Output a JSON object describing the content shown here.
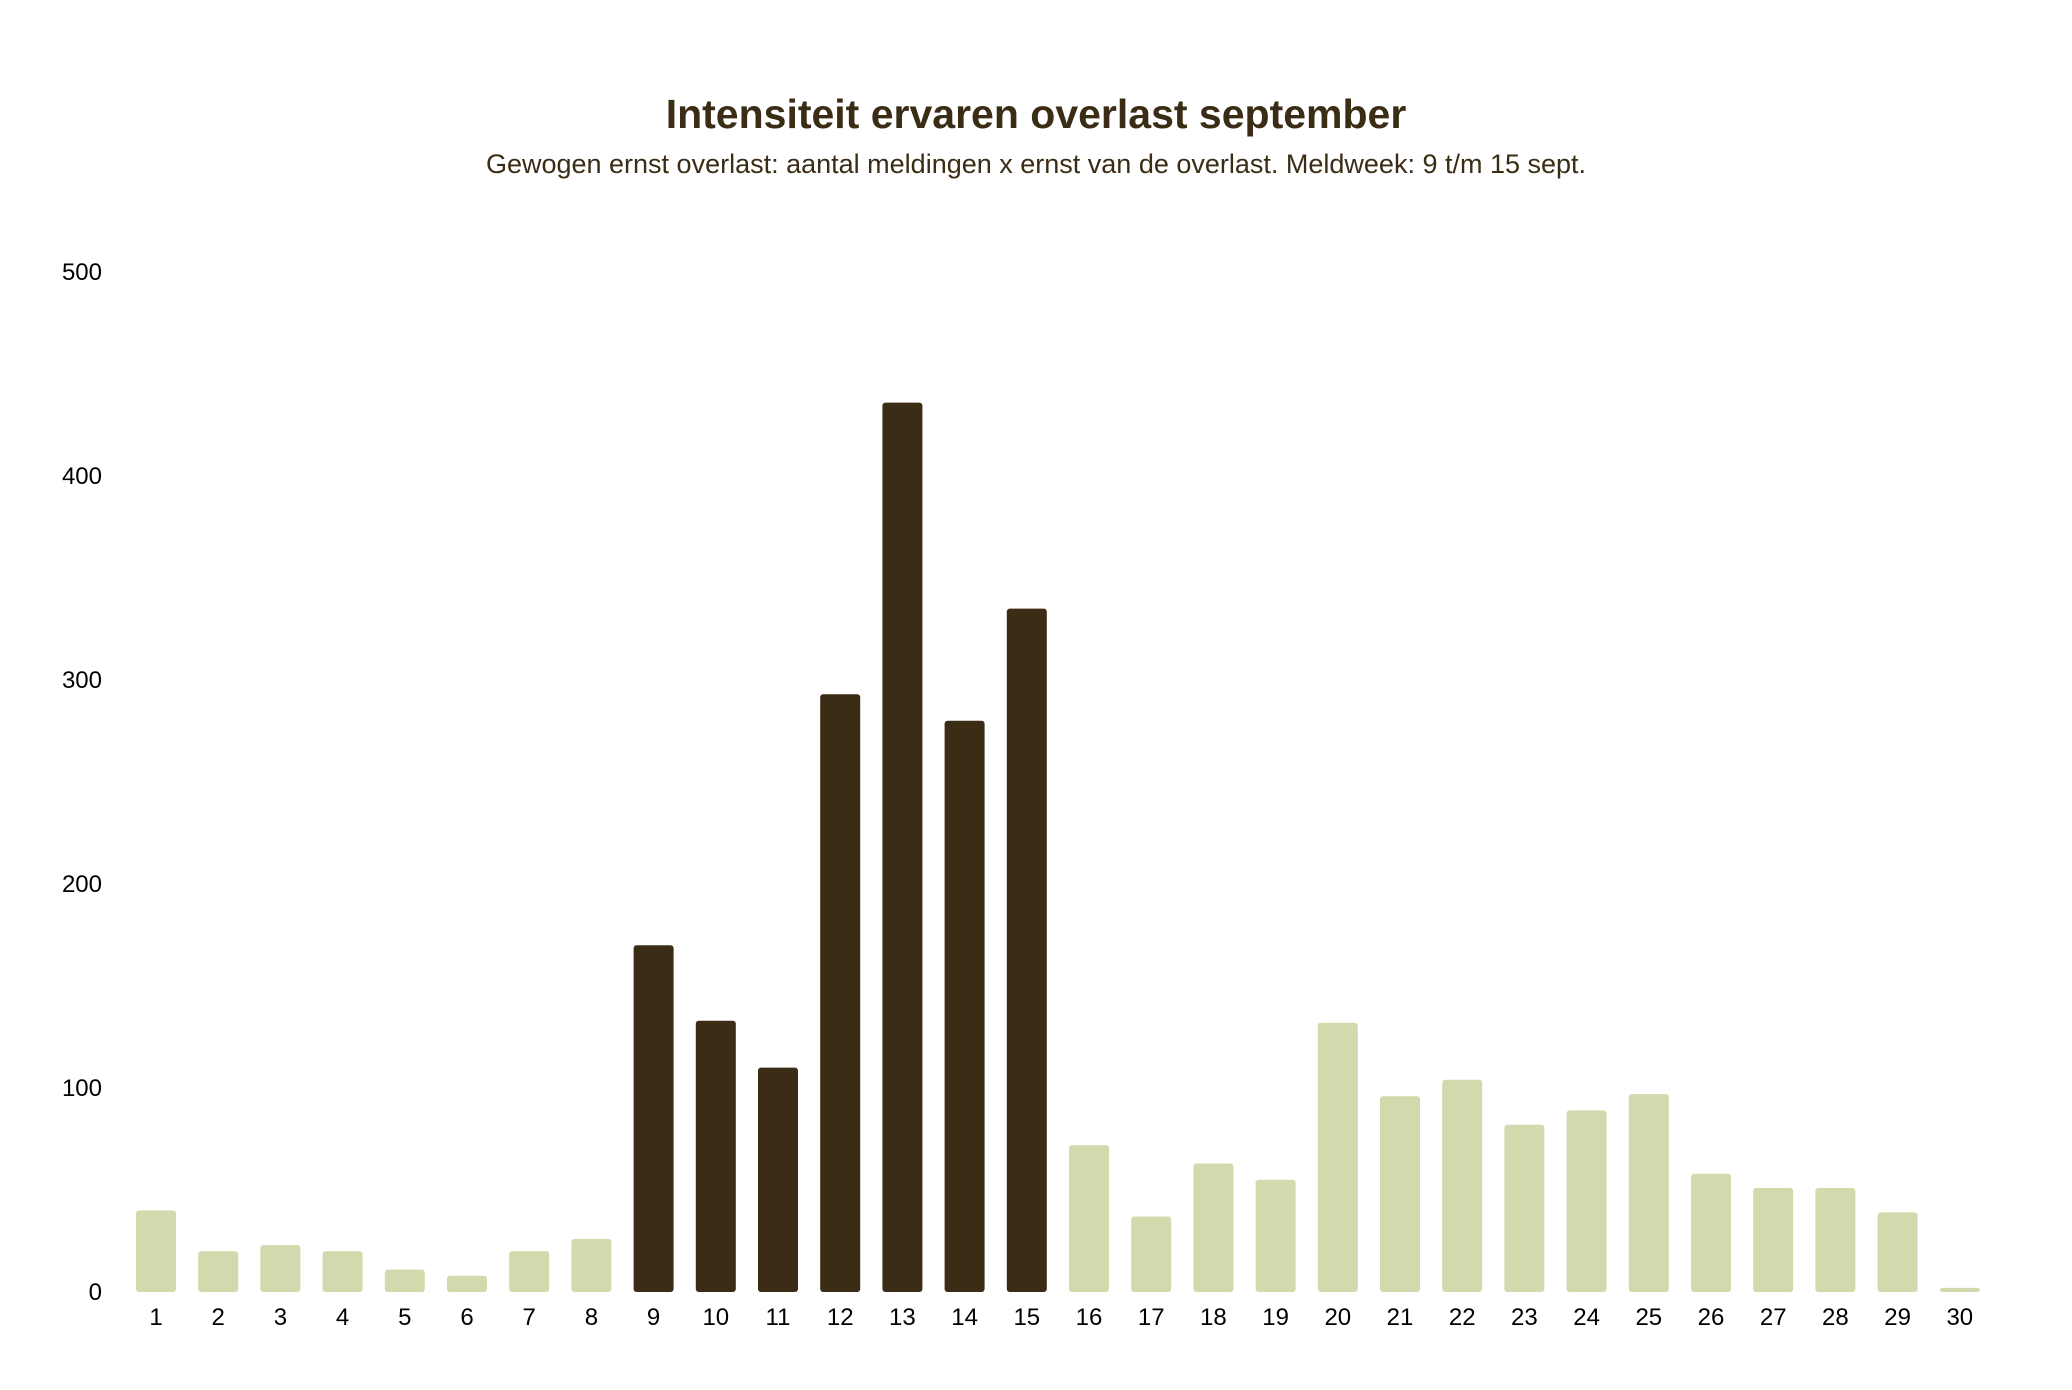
{
  "chart_data": {
    "type": "bar",
    "title": "Intensiteit ervaren overlast september",
    "subtitle": "Gewogen ernst overlast: aantal meldingen x ernst van de overlast. Meldweek: 9 t/m 15 sept.",
    "xlabel": "",
    "ylabel": "",
    "ylim": [
      0,
      500
    ],
    "yticks": [
      0,
      100,
      200,
      300,
      400,
      500
    ],
    "grid": false,
    "legend": "none",
    "highlight_range": [
      9,
      15
    ],
    "categories": [
      "1",
      "2",
      "3",
      "4",
      "5",
      "6",
      "7",
      "8",
      "9",
      "10",
      "11",
      "12",
      "13",
      "14",
      "15",
      "16",
      "17",
      "18",
      "19",
      "20",
      "21",
      "22",
      "23",
      "24",
      "25",
      "26",
      "27",
      "28",
      "29",
      "30"
    ],
    "values": [
      40,
      20,
      23,
      20,
      11,
      8,
      20,
      26,
      170,
      133,
      110,
      293,
      436,
      280,
      335,
      72,
      37,
      63,
      55,
      132,
      96,
      104,
      82,
      89,
      97,
      58,
      51,
      51,
      39,
      2
    ]
  },
  "colors": {
    "highlight": "#3a2c15",
    "base": "#d2d9ad",
    "title": "#3a2c15",
    "axis_text": "#000000"
  }
}
